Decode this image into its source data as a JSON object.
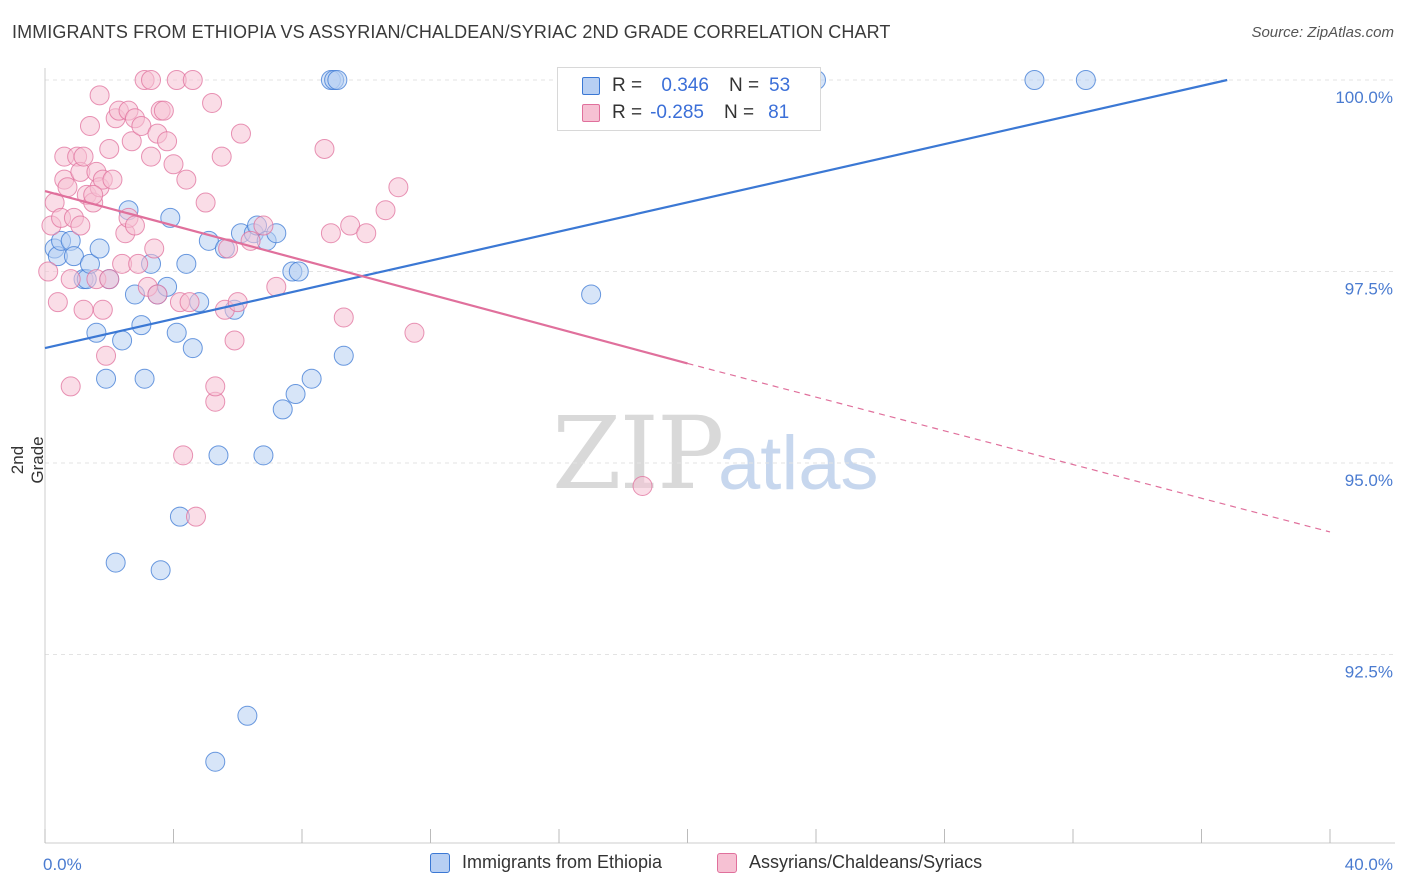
{
  "title": "IMMIGRANTS FROM ETHIOPIA VS ASSYRIAN/CHALDEAN/SYRIAC 2ND GRADE CORRELATION CHART",
  "source": "Source: ZipAtlas.com",
  "watermark": {
    "zip": "ZIP",
    "atlas": "atlas"
  },
  "legend": {
    "rows": [
      {
        "r_label": "R =",
        "r_value": " 0.346",
        "n_label": "N =",
        "n_value": "53"
      },
      {
        "r_label": "R =",
        "r_value": "-0.285",
        "n_label": "N =",
        "n_value": "81"
      }
    ]
  },
  "colors": {
    "blue": "#3b78d4",
    "blue_fill": "#b7cff3",
    "pink": "#e0709c",
    "pink_fill": "#f6c1d3"
  },
  "chart_data": {
    "type": "scatter",
    "title": "IMMIGRANTS FROM ETHIOPIA VS ASSYRIAN/CHALDEAN/SYRIAC 2ND GRADE CORRELATION CHART",
    "xlabel": "",
    "ylabel": "2nd Grade",
    "xlim": [
      0,
      40
    ],
    "ylim": [
      90.2,
      100.2
    ],
    "x_tick_labels": [
      "0.0%",
      "40.0%"
    ],
    "y_ticks": [
      92.5,
      95.0,
      97.5,
      100.0
    ],
    "y_tick_labels": [
      "92.5%",
      "95.0%",
      "97.5%",
      "100.0%"
    ],
    "series": [
      {
        "name": "Immigrants from Ethiopia",
        "r": 0.346,
        "n": 53,
        "trend": {
          "x0": 0,
          "y0": 96.5,
          "x1": 36.8,
          "y1": 100.0,
          "dashed_to": null
        },
        "points": [
          [
            0.3,
            97.8
          ],
          [
            0.4,
            97.7
          ],
          [
            0.5,
            97.9
          ],
          [
            0.8,
            97.9
          ],
          [
            0.9,
            97.7
          ],
          [
            1.2,
            97.4
          ],
          [
            1.3,
            97.4
          ],
          [
            1.4,
            97.6
          ],
          [
            1.6,
            96.7
          ],
          [
            1.7,
            97.8
          ],
          [
            1.9,
            96.1
          ],
          [
            2.0,
            97.4
          ],
          [
            2.2,
            93.7
          ],
          [
            2.4,
            96.6
          ],
          [
            2.6,
            98.3
          ],
          [
            2.8,
            97.2
          ],
          [
            3.0,
            96.8
          ],
          [
            3.1,
            96.1
          ],
          [
            3.3,
            97.6
          ],
          [
            3.5,
            97.2
          ],
          [
            3.6,
            93.6
          ],
          [
            3.8,
            97.3
          ],
          [
            3.9,
            98.2
          ],
          [
            4.1,
            96.7
          ],
          [
            4.2,
            94.3
          ],
          [
            4.4,
            97.6
          ],
          [
            4.6,
            96.5
          ],
          [
            4.8,
            97.1
          ],
          [
            5.1,
            97.9
          ],
          [
            5.3,
            91.1
          ],
          [
            5.4,
            95.1
          ],
          [
            5.6,
            97.8
          ],
          [
            5.9,
            97.0
          ],
          [
            6.1,
            98.0
          ],
          [
            6.3,
            91.7
          ],
          [
            6.5,
            98.0
          ],
          [
            6.6,
            98.1
          ],
          [
            6.8,
            95.1
          ],
          [
            6.9,
            97.9
          ],
          [
            7.2,
            98.0
          ],
          [
            7.4,
            95.7
          ],
          [
            7.7,
            97.5
          ],
          [
            7.8,
            95.9
          ],
          [
            7.9,
            97.5
          ],
          [
            8.3,
            96.1
          ],
          [
            8.9,
            100.0
          ],
          [
            9.0,
            100.0
          ],
          [
            9.1,
            100.0
          ],
          [
            9.3,
            96.4
          ],
          [
            17.0,
            97.2
          ],
          [
            24.0,
            100.0
          ],
          [
            30.8,
            100.0
          ],
          [
            32.4,
            100.0
          ]
        ]
      },
      {
        "name": "Assyrians/Chaldeans/Syriacs",
        "r": -0.285,
        "n": 81,
        "trend": {
          "x0": 0,
          "y0": 98.55,
          "x1": 20.0,
          "y1": 96.3,
          "dashed_to": {
            "x": 40,
            "y": 94.1
          }
        },
        "points": [
          [
            0.1,
            97.5
          ],
          [
            0.2,
            98.1
          ],
          [
            0.3,
            98.4
          ],
          [
            0.4,
            97.1
          ],
          [
            0.5,
            98.2
          ],
          [
            0.6,
            98.7
          ],
          [
            0.6,
            99.0
          ],
          [
            0.7,
            98.6
          ],
          [
            0.8,
            97.4
          ],
          [
            0.8,
            96.0
          ],
          [
            0.9,
            98.2
          ],
          [
            1.0,
            99.0
          ],
          [
            1.1,
            98.1
          ],
          [
            1.1,
            98.8
          ],
          [
            1.2,
            97.0
          ],
          [
            1.2,
            99.0
          ],
          [
            1.3,
            98.5
          ],
          [
            1.4,
            99.4
          ],
          [
            1.5,
            98.4
          ],
          [
            1.6,
            97.4
          ],
          [
            1.6,
            98.8
          ],
          [
            1.7,
            98.6
          ],
          [
            1.7,
            99.8
          ],
          [
            1.8,
            98.7
          ],
          [
            1.8,
            97.0
          ],
          [
            1.9,
            96.4
          ],
          [
            2.0,
            97.4
          ],
          [
            2.1,
            98.7
          ],
          [
            2.2,
            99.5
          ],
          [
            2.3,
            99.6
          ],
          [
            2.4,
            97.6
          ],
          [
            2.5,
            98.0
          ],
          [
            2.6,
            99.6
          ],
          [
            2.6,
            98.2
          ],
          [
            2.7,
            99.2
          ],
          [
            2.8,
            98.1
          ],
          [
            2.8,
            99.5
          ],
          [
            2.9,
            97.6
          ],
          [
            3.0,
            99.4
          ],
          [
            3.1,
            100.0
          ],
          [
            3.2,
            97.3
          ],
          [
            3.3,
            99.0
          ],
          [
            3.3,
            100.0
          ],
          [
            3.4,
            97.8
          ],
          [
            3.5,
            99.3
          ],
          [
            3.5,
            97.2
          ],
          [
            3.6,
            99.6
          ],
          [
            3.7,
            99.6
          ],
          [
            3.8,
            99.2
          ],
          [
            4.0,
            98.9
          ],
          [
            4.1,
            100.0
          ],
          [
            4.2,
            97.1
          ],
          [
            4.3,
            95.1
          ],
          [
            4.4,
            98.7
          ],
          [
            4.5,
            97.1
          ],
          [
            4.6,
            100.0
          ],
          [
            4.7,
            94.3
          ],
          [
            5.0,
            98.4
          ],
          [
            5.2,
            99.7
          ],
          [
            5.3,
            95.8
          ],
          [
            5.3,
            96.0
          ],
          [
            5.5,
            99.0
          ],
          [
            5.6,
            97.0
          ],
          [
            5.7,
            97.8
          ],
          [
            5.9,
            96.6
          ],
          [
            6.0,
            97.1
          ],
          [
            6.1,
            99.3
          ],
          [
            6.4,
            97.9
          ],
          [
            6.8,
            98.1
          ],
          [
            7.2,
            97.3
          ],
          [
            8.7,
            99.1
          ],
          [
            8.9,
            98.0
          ],
          [
            9.3,
            96.9
          ],
          [
            9.5,
            98.1
          ],
          [
            10.0,
            98.0
          ],
          [
            10.6,
            98.3
          ],
          [
            11.0,
            98.6
          ],
          [
            11.5,
            96.7
          ],
          [
            18.6,
            94.7
          ],
          [
            1.5,
            98.5
          ],
          [
            2.0,
            99.1
          ]
        ]
      }
    ]
  },
  "bottom_legend": {
    "items": [
      "Immigrants from Ethiopia",
      "Assyrians/Chaldeans/Syriacs"
    ]
  }
}
